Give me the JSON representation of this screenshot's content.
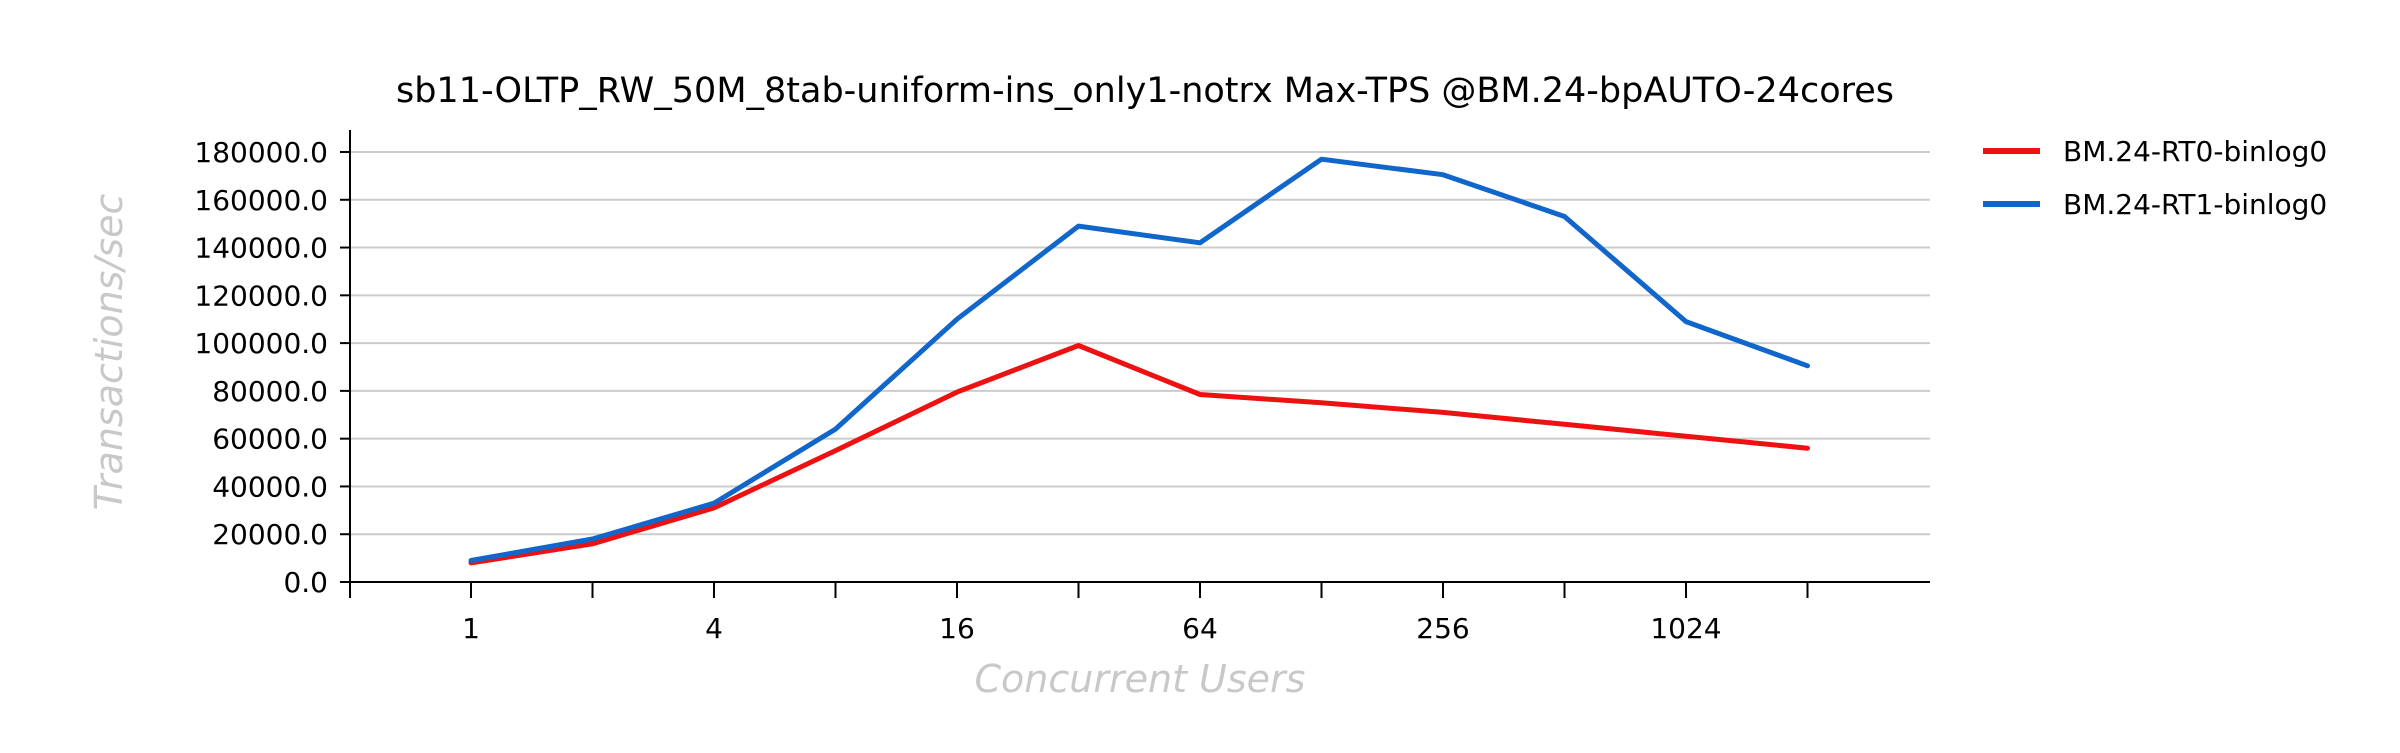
{
  "chart_data": {
    "type": "line",
    "title": "sb11-OLTP_RW_50M_8tab-uniform-ins_only1-notrx Max-TPS @BM.24-bpAUTO-24cores",
    "xlabel": "Concurrent Users",
    "ylabel": "Transactions/sec",
    "x": [
      1,
      2,
      4,
      8,
      16,
      32,
      64,
      128,
      256,
      512,
      1024,
      2048
    ],
    "x_scale": "log2",
    "x_tick_labels": [
      "1",
      "4",
      "16",
      "64",
      "256",
      "1024"
    ],
    "x_tick_values": [
      1,
      4,
      16,
      64,
      256,
      1024
    ],
    "y_tick_labels": [
      "0.0",
      "20000.0",
      "40000.0",
      "60000.0",
      "80000.0",
      "100000.0",
      "120000.0",
      "140000.0",
      "160000.0",
      "180000.0"
    ],
    "ylim": [
      0,
      180000
    ],
    "grid": "horizontal",
    "legend_position": "right",
    "series": [
      {
        "name": "BM.24-RT0-binlog0",
        "color": "#ee1111",
        "values": [
          8000,
          16000,
          31000,
          55000,
          79500,
          99000,
          78500,
          75000,
          71000,
          66000,
          61000,
          56000
        ]
      },
      {
        "name": "BM.24-RT1-binlog0",
        "color": "#1166cc",
        "values": [
          9000,
          18000,
          33000,
          64000,
          110000,
          149000,
          142000,
          177000,
          170500,
          153000,
          109000,
          90500
        ]
      }
    ]
  }
}
